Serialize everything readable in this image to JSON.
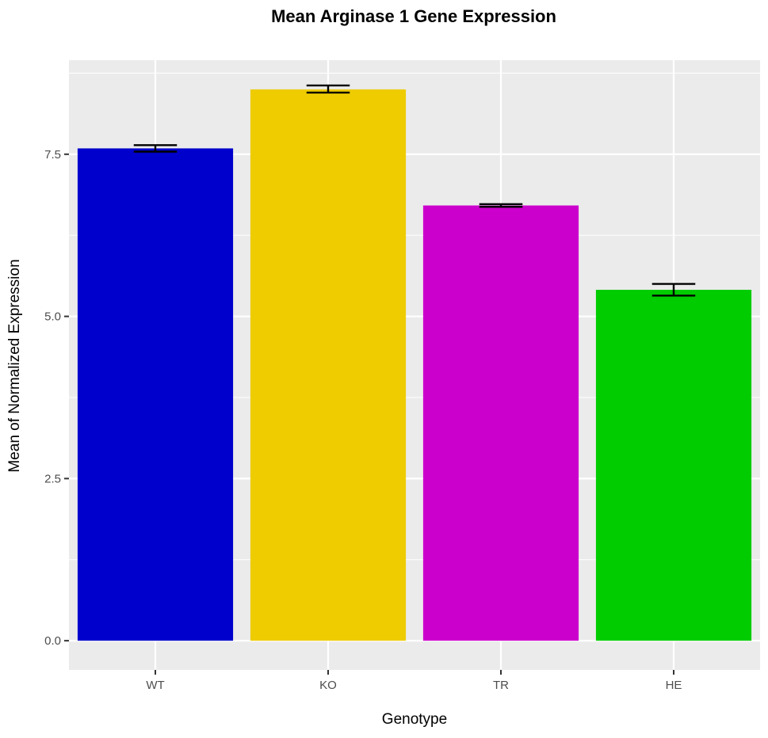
{
  "chart_data": {
    "type": "bar",
    "title": "Mean Arginase 1 Gene Expression",
    "xlabel": "Genotype",
    "ylabel": "Mean of Normalized Expression",
    "categories": [
      "WT",
      "KO",
      "TR",
      "HE"
    ],
    "values": [
      7.59,
      8.5,
      6.71,
      5.41
    ],
    "error_low": [
      7.54,
      8.45,
      6.69,
      5.32
    ],
    "error_high": [
      7.64,
      8.56,
      6.73,
      5.5
    ],
    "colors": [
      "#0000CC",
      "#EECC00",
      "#CC00CC",
      "#00CC00"
    ],
    "ylim": [
      -0.45,
      8.95
    ],
    "yticks": [
      0.0,
      2.5,
      5.0,
      7.5
    ],
    "ytick_labels": [
      "0.0",
      "2.5",
      "5.0",
      "7.5"
    ],
    "grid": true,
    "panel_background": "#EBEBEB",
    "grid_color": "#FFFFFF",
    "legend": "none"
  }
}
